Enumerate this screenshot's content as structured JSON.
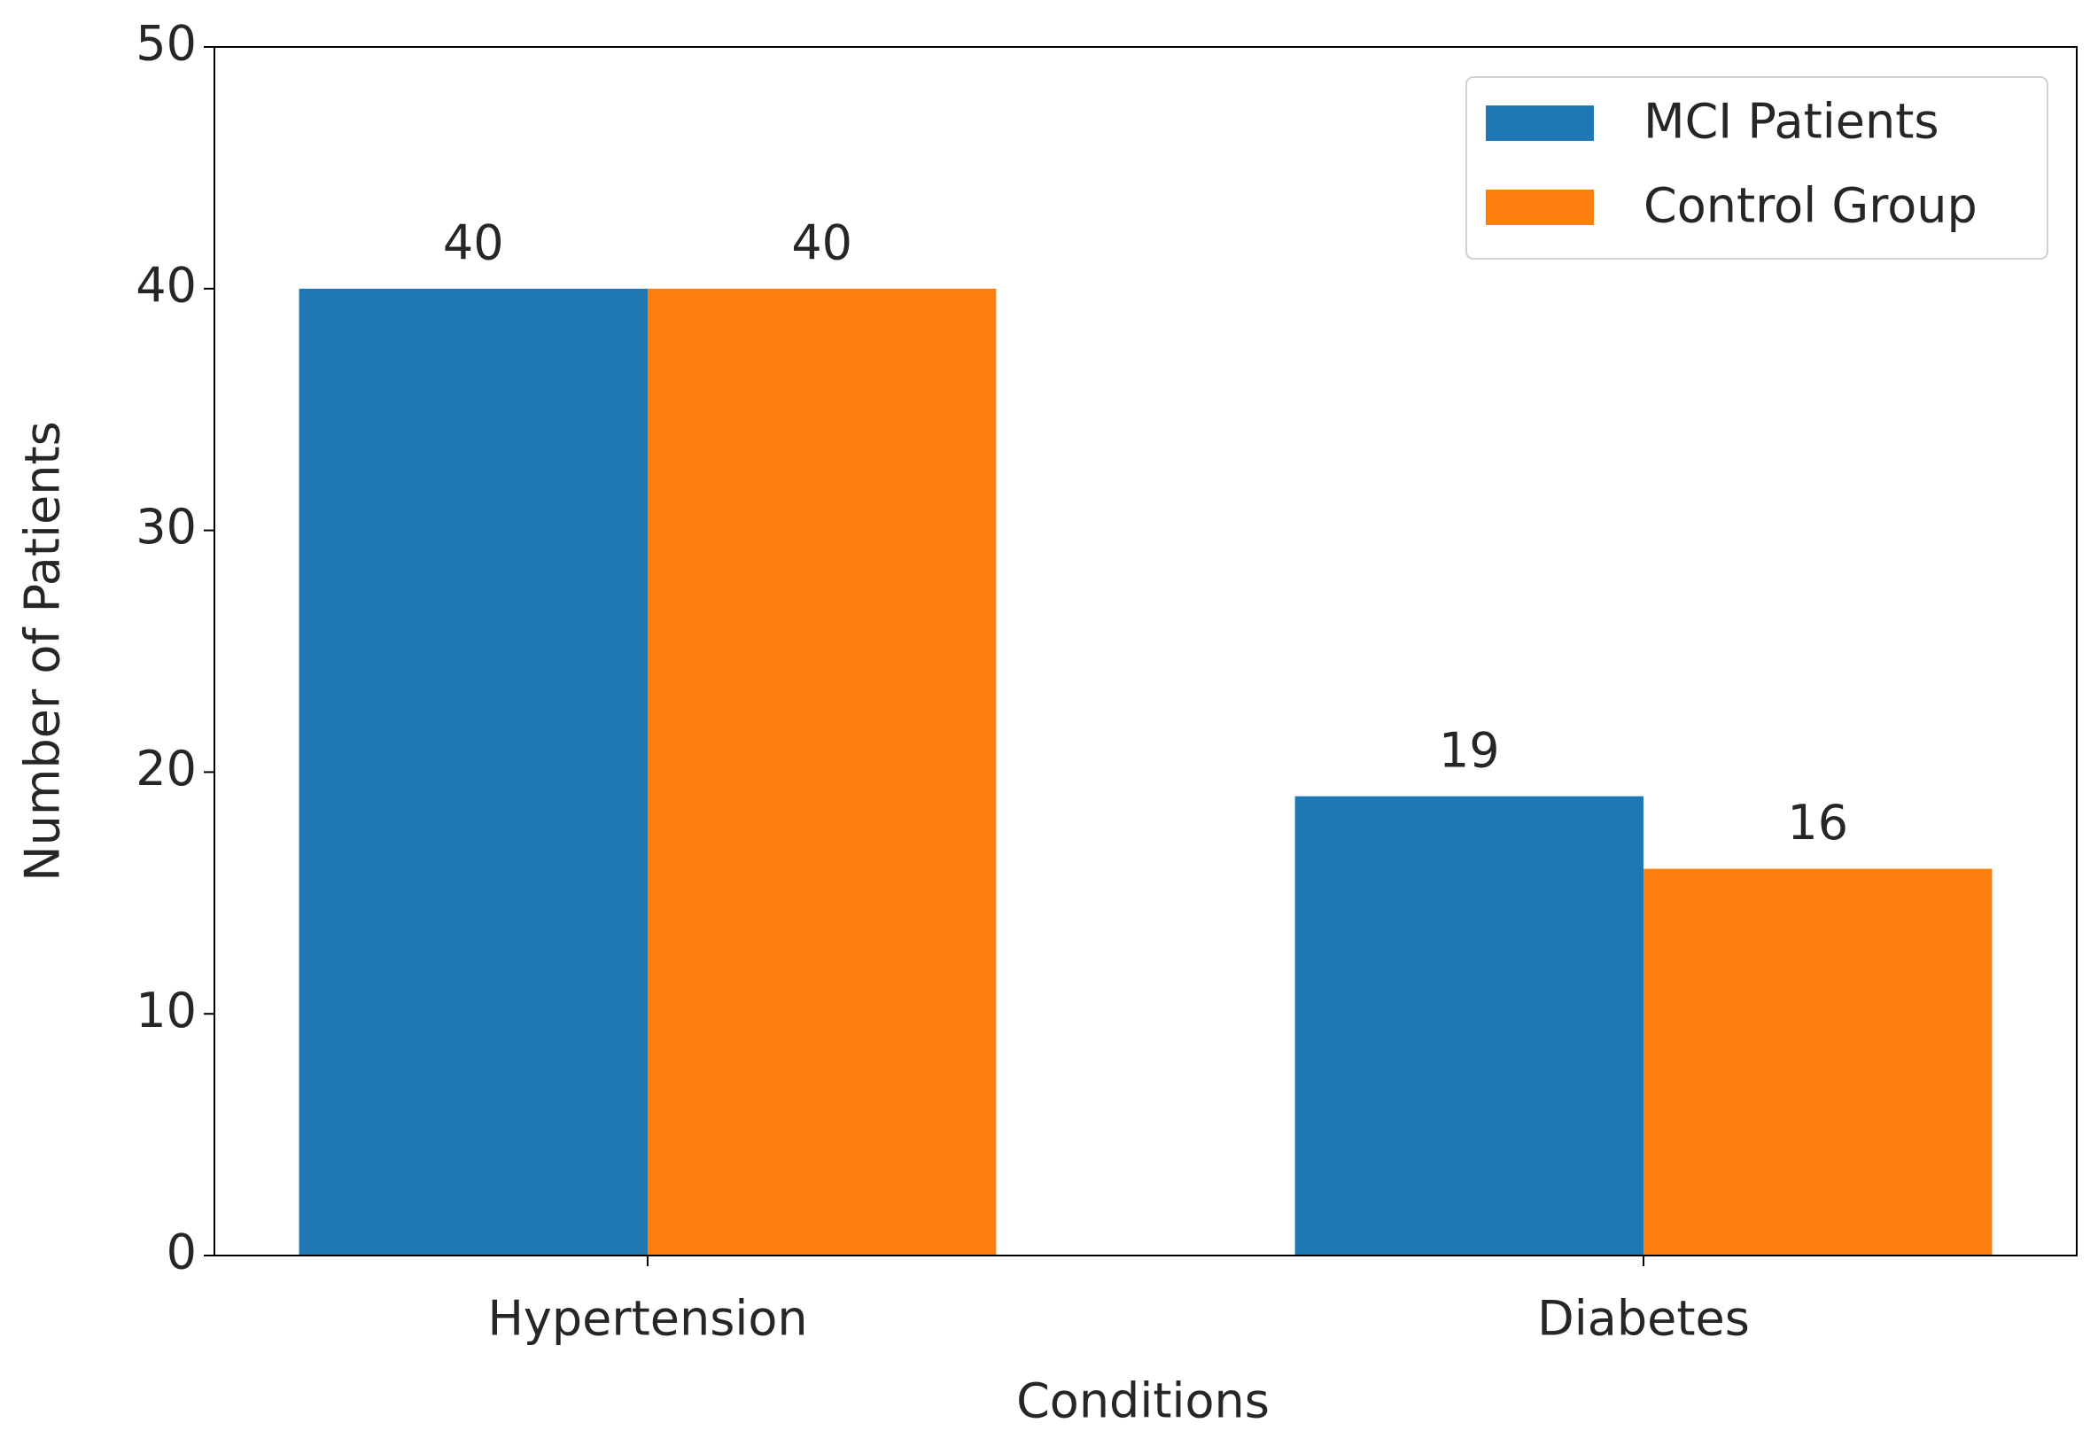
{
  "chart_data": {
    "type": "bar",
    "xlabel": "Conditions",
    "ylabel": "Number of Patients",
    "categories": [
      "Hypertension",
      "Diabetes"
    ],
    "series": [
      {
        "name": "MCI Patients",
        "color": "#1f77b4",
        "values": [
          40,
          19
        ]
      },
      {
        "name": "Control Group",
        "color": "#ff7f0e",
        "values": [
          40,
          16
        ]
      }
    ],
    "ylim": [
      0,
      50
    ],
    "yticks": [
      0,
      10,
      20,
      30,
      40,
      50
    ],
    "legend": "upper right",
    "show_values": true
  }
}
